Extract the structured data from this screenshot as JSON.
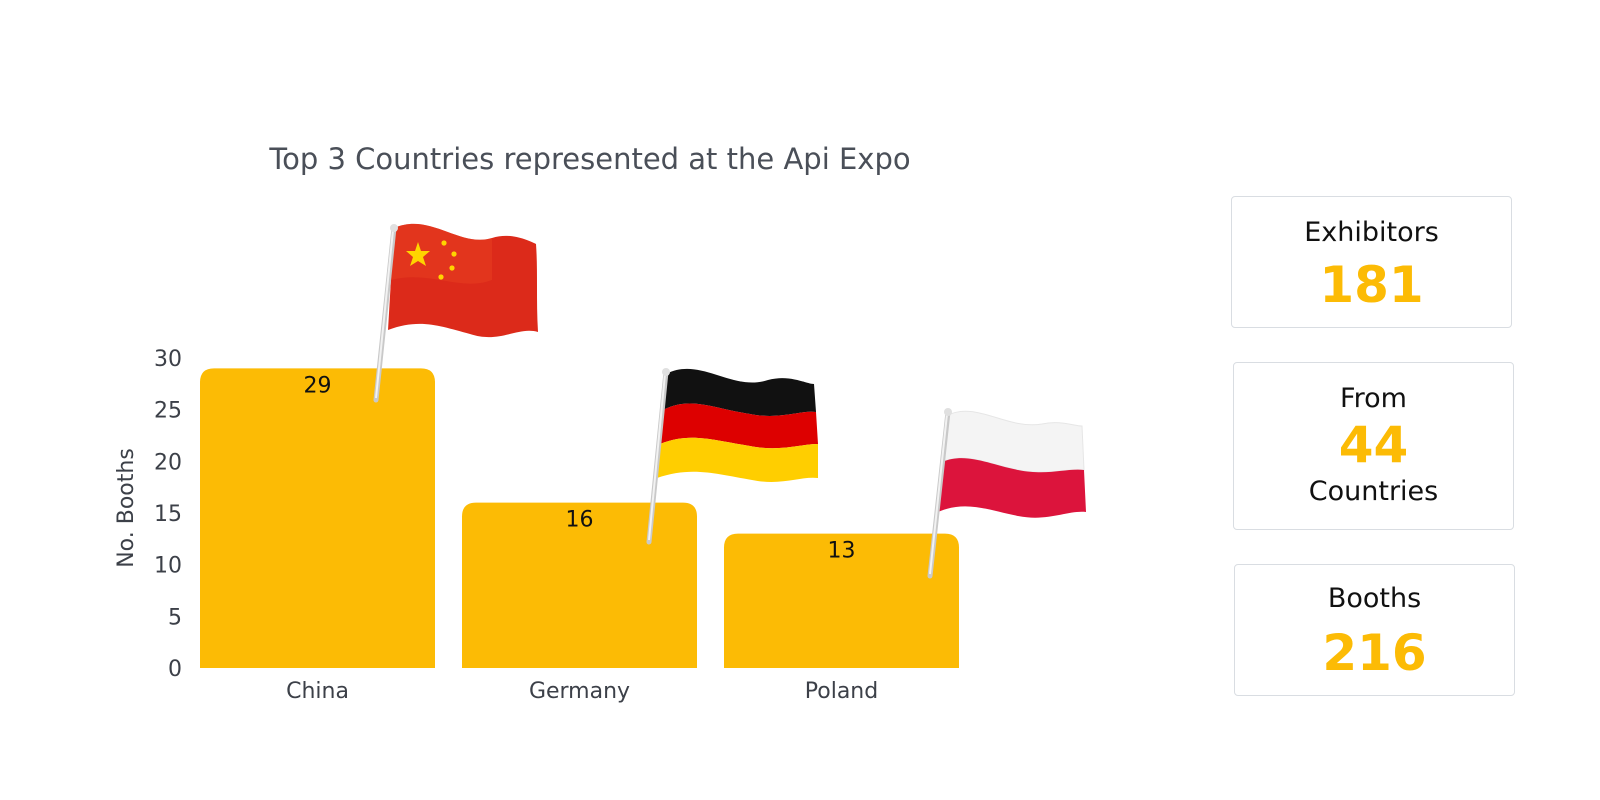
{
  "colors": {
    "bar": "#fcbb05",
    "axis_text": "#3c4048",
    "title_text": "#4a4f58",
    "accent": "#fcbb05"
  },
  "chart_data": {
    "type": "bar",
    "title": "Top 3 Countries represented at the Api Expo",
    "ylabel": "No. Booths",
    "xlabel": "",
    "categories": [
      "China",
      "Germany",
      "Poland"
    ],
    "values": [
      29,
      16,
      13
    ],
    "ylim": [
      0,
      30
    ],
    "yticks": [
      0,
      5,
      10,
      15,
      20,
      25,
      30
    ],
    "data_labels": [
      "29",
      "16",
      "13"
    ],
    "grid": false,
    "legend": "none",
    "decorations": [
      "china-flag",
      "germany-flag",
      "poland-flag"
    ]
  },
  "stats": {
    "exhibitors": {
      "label": "Exhibitors",
      "value": "181"
    },
    "countries": {
      "label_top": "From",
      "value": "44",
      "label_bottom": "Countries"
    },
    "booths": {
      "label": "Booths",
      "value": "216"
    }
  }
}
